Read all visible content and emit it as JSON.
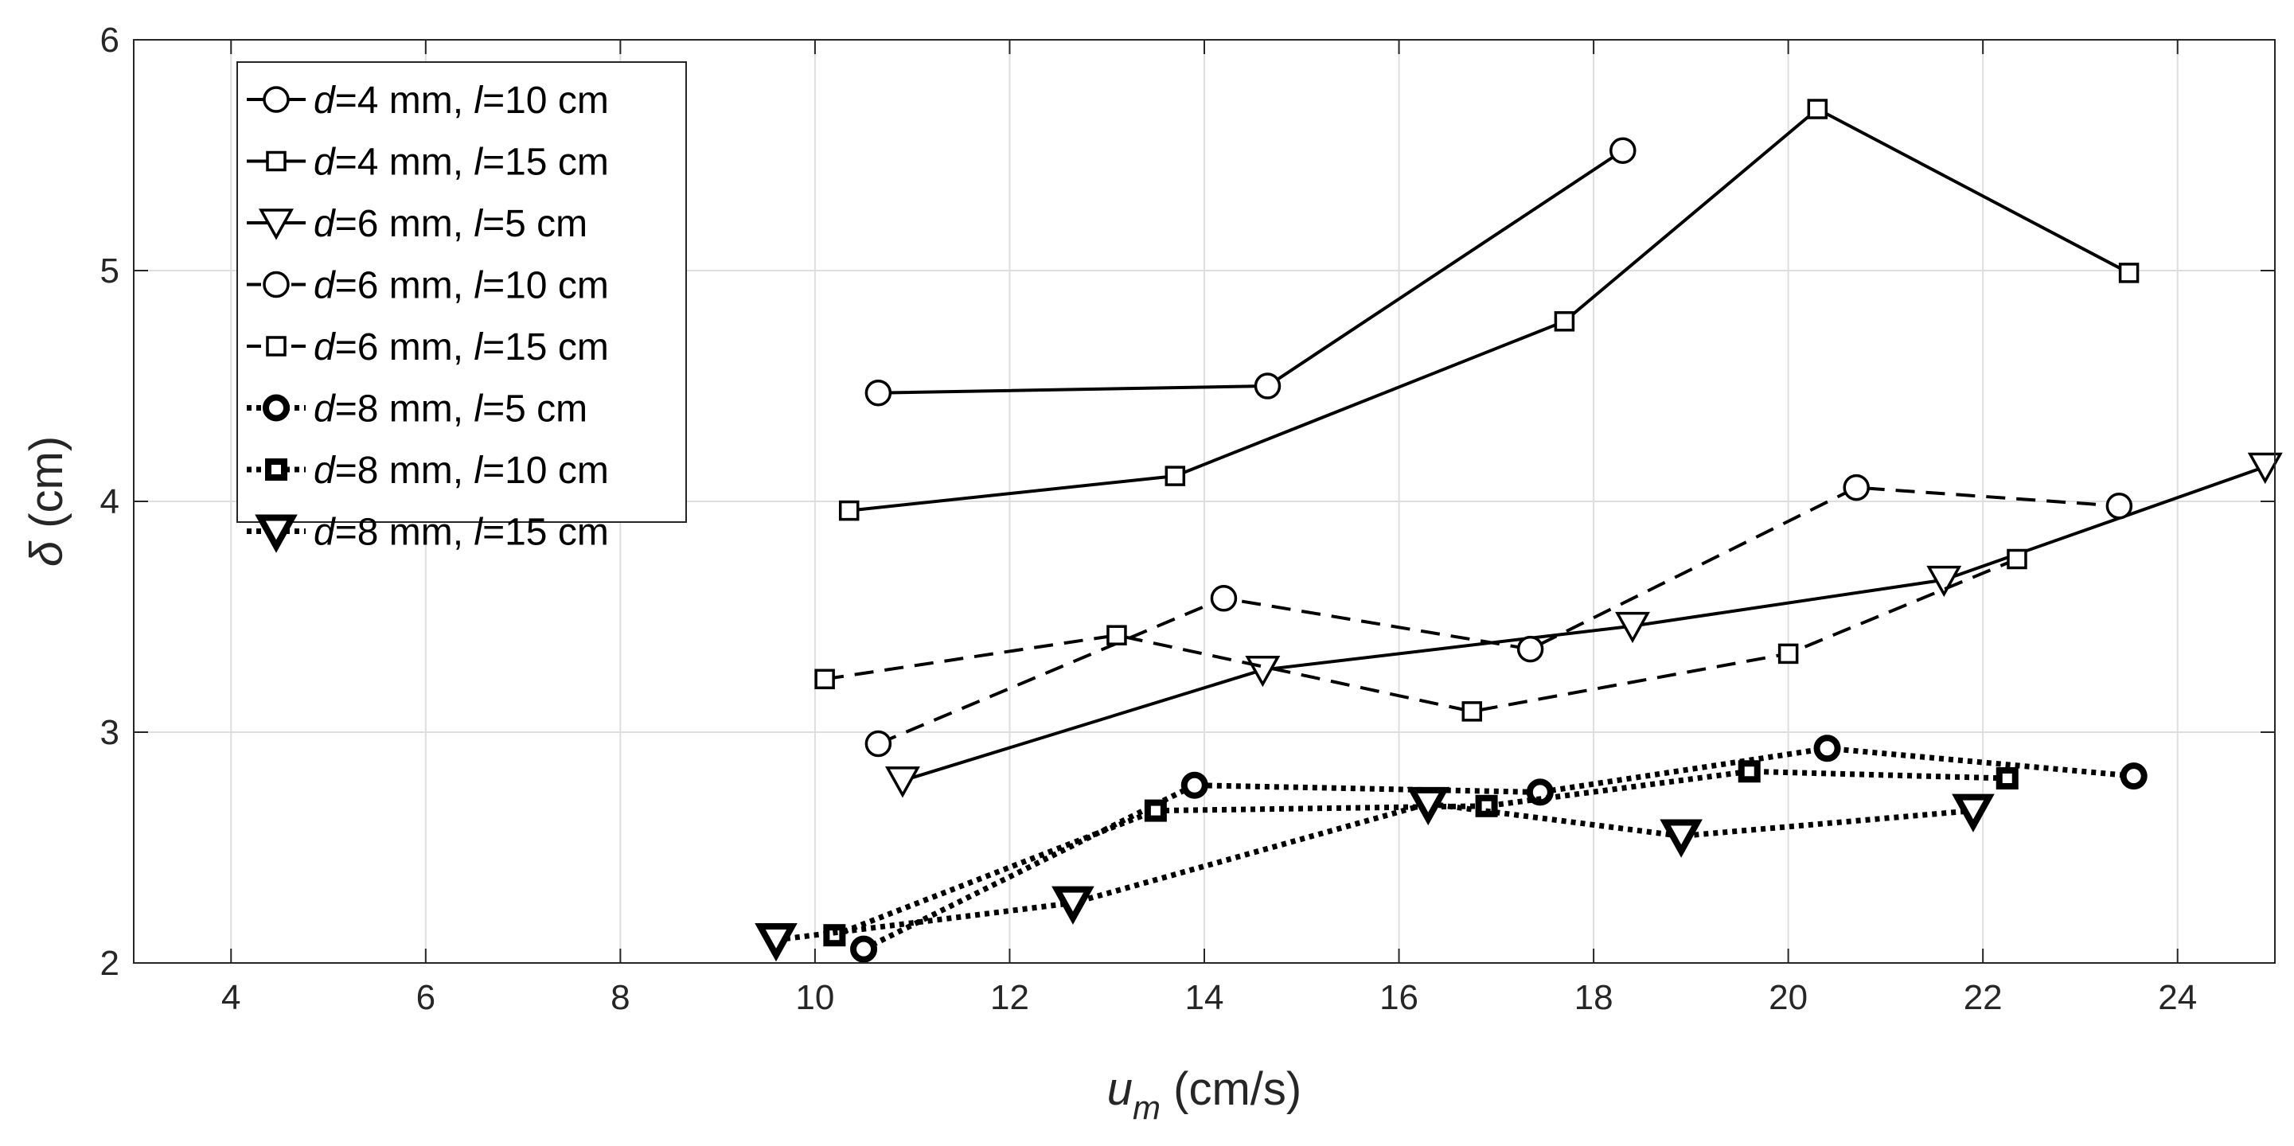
{
  "chart_data": {
    "type": "line",
    "title": "",
    "xlabel": {
      "base": "u",
      "sub": "m",
      "unit": " (cm/s)"
    },
    "ylabel": {
      "symbol": "δ",
      "unit": " (cm)"
    },
    "xlim": [
      3,
      25
    ],
    "ylim": [
      2,
      6
    ],
    "xticks": [
      4,
      6,
      8,
      10,
      12,
      14,
      16,
      18,
      20,
      22,
      24
    ],
    "yticks": [
      2,
      3,
      4,
      5,
      6
    ],
    "grid": true,
    "legend_position": "top-left",
    "series": [
      {
        "name": "d=4 mm, l=10 cm",
        "d": "4",
        "l": "10",
        "marker": "circle",
        "line": "solid",
        "bold": false,
        "x": [
          10.65,
          14.65,
          18.3
        ],
        "y": [
          4.47,
          4.5,
          5.52
        ]
      },
      {
        "name": "d=4 mm, l=15 cm",
        "d": "4",
        "l": "15",
        "marker": "square",
        "line": "solid",
        "bold": false,
        "x": [
          10.35,
          13.7,
          17.7,
          20.3,
          23.5
        ],
        "y": [
          3.96,
          4.11,
          4.78,
          5.7,
          4.99
        ]
      },
      {
        "name": "d=6 mm, l=5 cm",
        "d": "6",
        "l": "5",
        "marker": "triangle-down",
        "line": "solid",
        "bold": false,
        "x": [
          10.9,
          14.6,
          18.4,
          21.6,
          24.9
        ],
        "y": [
          2.79,
          3.27,
          3.46,
          3.66,
          4.15
        ]
      },
      {
        "name": "d=6 mm, l=10 cm",
        "d": "6",
        "l": "10",
        "marker": "circle",
        "line": "dashed",
        "bold": false,
        "x": [
          10.65,
          14.2,
          17.35,
          20.7,
          23.4
        ],
        "y": [
          2.95,
          3.58,
          3.36,
          4.06,
          3.98
        ]
      },
      {
        "name": "d=6 mm, l=15 cm",
        "d": "6",
        "l": "15",
        "marker": "square",
        "line": "dashed",
        "bold": false,
        "x": [
          10.1,
          13.1,
          16.75,
          20.0,
          22.35
        ],
        "y": [
          3.23,
          3.42,
          3.09,
          3.34,
          3.75
        ]
      },
      {
        "name": "d=8 mm, l=5 cm",
        "d": "8",
        "l": "5",
        "marker": "circle",
        "line": "dotted",
        "bold": true,
        "x": [
          10.5,
          13.9,
          17.45,
          20.4,
          23.55
        ],
        "y": [
          2.06,
          2.77,
          2.74,
          2.93,
          2.81
        ]
      },
      {
        "name": "d=8 mm, l=10 cm",
        "d": "8",
        "l": "10",
        "marker": "square",
        "line": "dotted",
        "bold": true,
        "x": [
          10.2,
          13.5,
          16.9,
          19.6,
          22.25
        ],
        "y": [
          2.12,
          2.66,
          2.68,
          2.83,
          2.8
        ]
      },
      {
        "name": "d=8 mm, l=15 cm",
        "d": "8",
        "l": "15",
        "marker": "triangle-down",
        "line": "dotted",
        "bold": true,
        "x": [
          9.6,
          12.65,
          16.3,
          18.9,
          21.9
        ],
        "y": [
          2.1,
          2.26,
          2.69,
          2.55,
          2.66
        ]
      }
    ]
  }
}
